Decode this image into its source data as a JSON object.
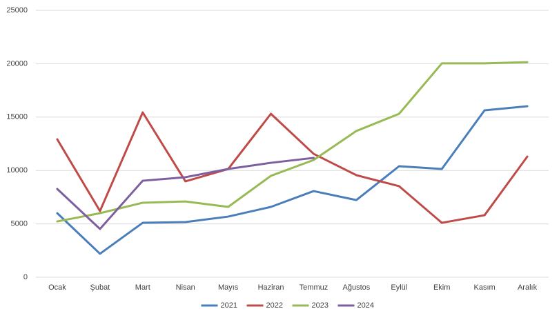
{
  "chart_data": {
    "type": "line",
    "categories": [
      "Ocak",
      "Şubat",
      "Mart",
      "Nisan",
      "Mayıs",
      "Haziran",
      "Temmuz",
      "Ağustos",
      "Eylül",
      "Ekim",
      "Kasım",
      "Aralık"
    ],
    "series": [
      {
        "name": "2021",
        "color": "#4a7ebb",
        "values": [
          6000,
          2200,
          5100,
          5170,
          5680,
          6590,
          8070,
          7230,
          10400,
          10140,
          15630,
          16020
        ]
      },
      {
        "name": "2022",
        "color": "#be4b48",
        "values": [
          12920,
          6200,
          15440,
          8980,
          10140,
          15310,
          11560,
          9560,
          8530,
          5100,
          5810,
          11300
        ]
      },
      {
        "name": "2023",
        "color": "#98b954",
        "values": [
          5230,
          6000,
          6980,
          7100,
          6590,
          9500,
          10980,
          13700,
          15310,
          20030,
          20030,
          20150
        ]
      },
      {
        "name": "2024",
        "color": "#7d5fa0",
        "values": [
          8270,
          4520,
          9040,
          9370,
          10140,
          10720,
          11180,
          null,
          null,
          null,
          null,
          null
        ]
      }
    ],
    "ylim": [
      0,
      25000
    ],
    "yticks": [
      0,
      5000,
      10000,
      15000,
      20000,
      25000
    ],
    "grid": true,
    "legend": "bottom"
  }
}
